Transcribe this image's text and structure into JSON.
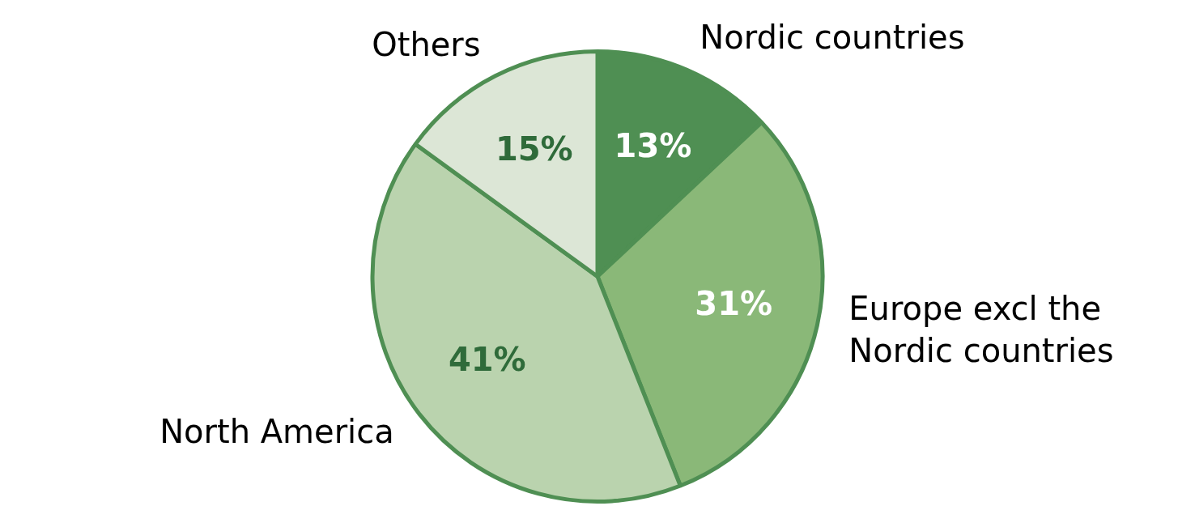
{
  "chart_data": {
    "type": "pie",
    "categories": [
      "Nordic countries",
      "Europe excl the Nordic countries",
      "North America",
      "Others"
    ],
    "values": [
      13,
      31,
      41,
      15
    ],
    "colors": [
      "#4f8f53",
      "#8ab878",
      "#bad3ae",
      "#dce6d6"
    ],
    "value_labels": [
      "13%",
      "31%",
      "41%",
      "15%"
    ],
    "legend": false
  }
}
